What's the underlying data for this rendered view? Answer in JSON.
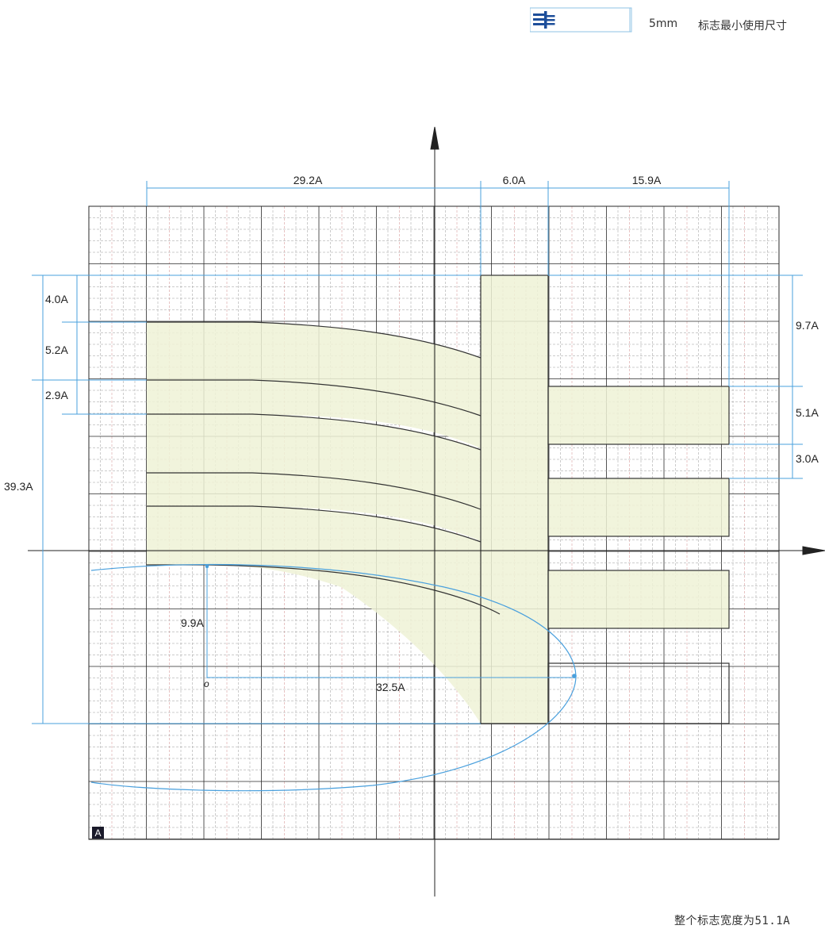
{
  "header": {
    "min_size_value": "5mm",
    "min_size_caption": "标志最小使用尺寸"
  },
  "dimensions": {
    "top": [
      "29.2A",
      "6.0A",
      "15.9A"
    ],
    "left": [
      "4.0A",
      "5.2A",
      "2.9A",
      "39.3A"
    ],
    "right": [
      "9.7A",
      "5.1A",
      "3.0A"
    ],
    "inner_vertical": "9.9A",
    "inner_horizontal": "32.5A",
    "origin_label": "o"
  },
  "grid_badge": "A",
  "footer_note": "整个标志宽度为51.1A",
  "colors": {
    "grid_line": "#2a2a2a",
    "grid_dash": "#9a9a9a",
    "grid_red_dash": "#d08a8a",
    "dimension_line": "#4aa0dd",
    "logo_fill": "#eef2d6",
    "logo_stroke": "#333333",
    "logo_mark": "#1d4e9a"
  }
}
